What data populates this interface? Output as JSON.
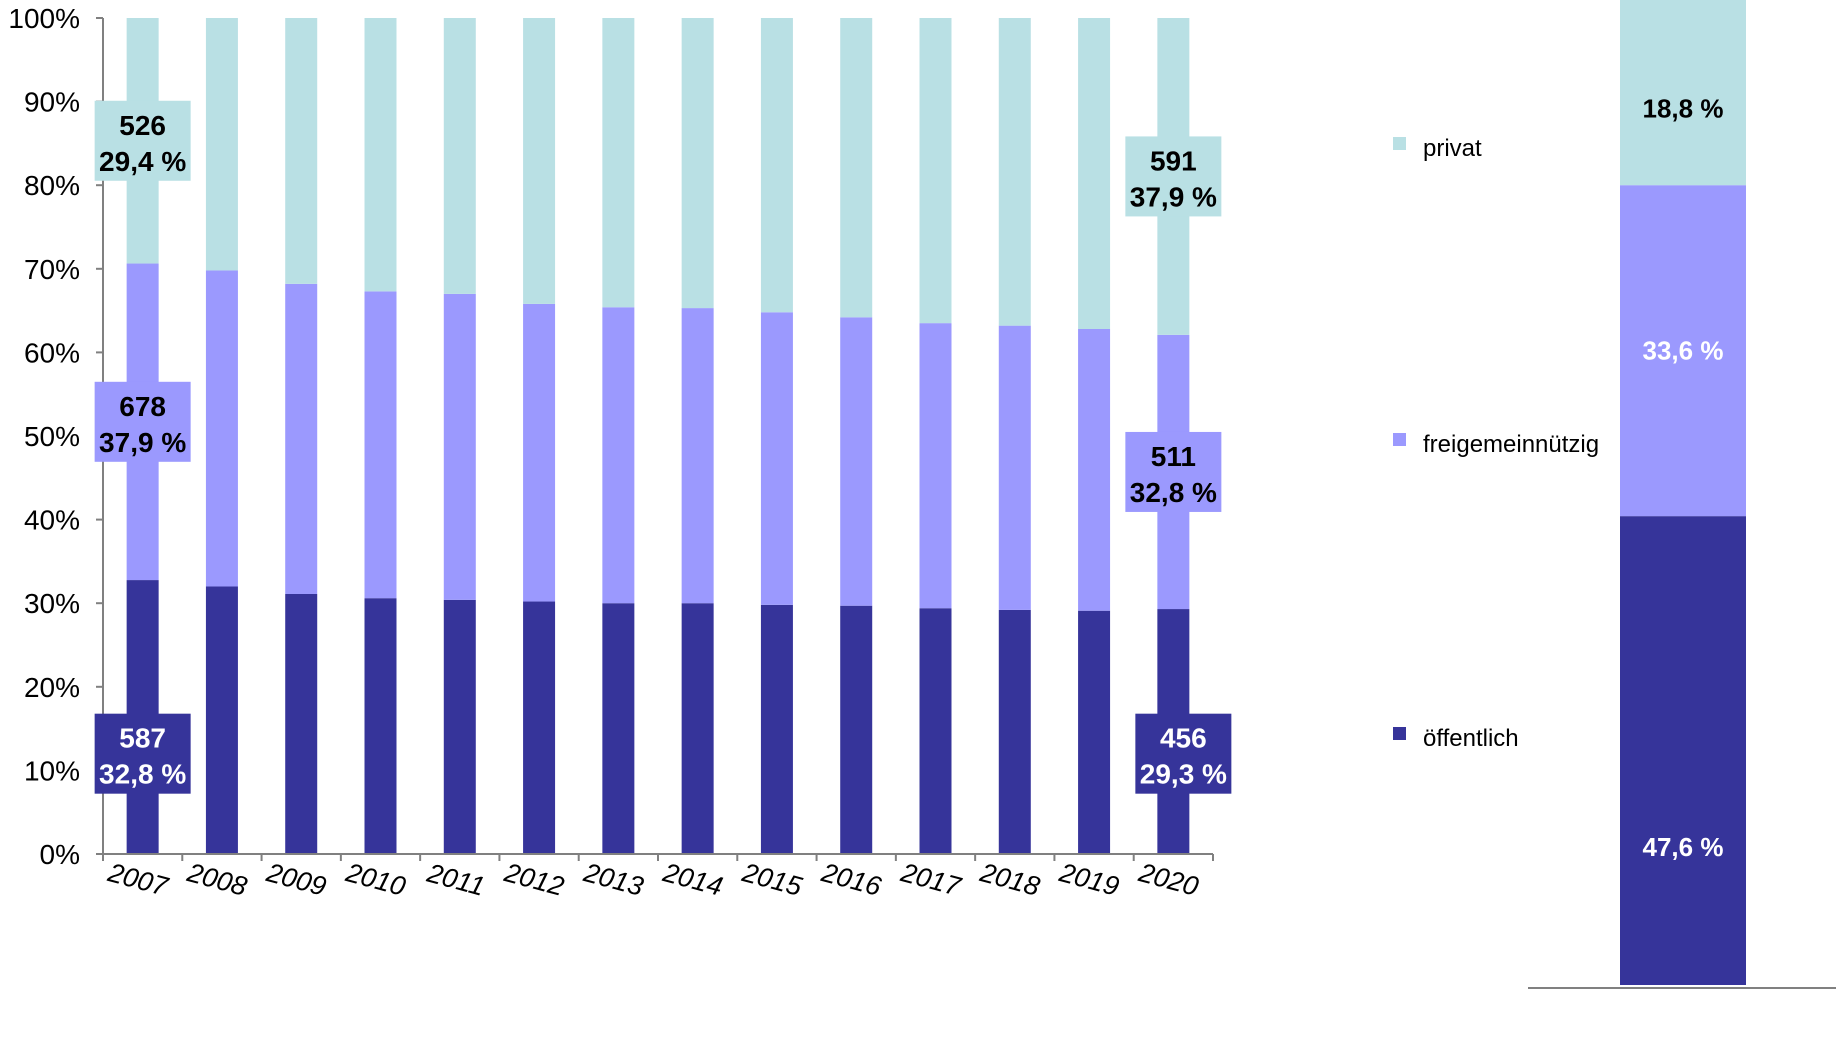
{
  "chart_data": [
    {
      "type": "bar",
      "stacked": true,
      "percent_stacked": true,
      "categories": [
        "2007",
        "2008",
        "2009",
        "2010",
        "2011",
        "2012",
        "2013",
        "2014",
        "2015",
        "2016",
        "2017",
        "2018",
        "2019",
        "2020"
      ],
      "series": [
        {
          "name": "öffentlich",
          "color": "#36349a",
          "values": [
            32.8,
            32.0,
            31.1,
            30.6,
            30.4,
            30.2,
            30.0,
            30.0,
            29.8,
            29.7,
            29.4,
            29.2,
            29.1,
            29.3
          ]
        },
        {
          "name": "freigemeinnützig",
          "color": "#9b99fe",
          "values": [
            37.9,
            37.8,
            37.1,
            36.7,
            36.6,
            35.6,
            35.4,
            35.3,
            35.0,
            34.5,
            34.1,
            34.0,
            33.7,
            32.8
          ]
        },
        {
          "name": "privat",
          "color": "#b9e0e4",
          "values": [
            29.4,
            30.2,
            31.8,
            32.7,
            33.0,
            34.2,
            34.6,
            34.7,
            35.2,
            35.8,
            36.5,
            36.8,
            37.2,
            37.9
          ]
        }
      ],
      "ylim": [
        0,
        100
      ],
      "yticks": [
        "0%",
        "10%",
        "20%",
        "30%",
        "40%",
        "50%",
        "60%",
        "70%",
        "80%",
        "90%",
        "100%"
      ],
      "legend_position": "right",
      "grid": false,
      "annotations": [
        {
          "category": "2007",
          "series": "privat",
          "count": "526",
          "percent": "29,4 %"
        },
        {
          "category": "2007",
          "series": "freigemeinnützig",
          "count": "678",
          "percent": "37,9 %"
        },
        {
          "category": "2007",
          "series": "öffentlich",
          "count": "587",
          "percent": "32,8 %"
        },
        {
          "category": "2020",
          "series": "privat",
          "count": "591",
          "percent": "37,9 %"
        },
        {
          "category": "2020",
          "series": "freigemeinnützig",
          "count": "511",
          "percent": "32,8 %"
        },
        {
          "category": "2020",
          "series": "öffentlich",
          "count": "456",
          "percent": "29,3 %"
        }
      ]
    },
    {
      "type": "bar",
      "stacked": true,
      "percent_stacked": true,
      "categories": [
        ""
      ],
      "series": [
        {
          "name": "öffentlich",
          "color": "#36349a",
          "values": [
            47.6
          ],
          "label": "47,6 %"
        },
        {
          "name": "freigemeinnützig",
          "color": "#9b99fe",
          "values": [
            33.6
          ],
          "label": "33,6 %"
        },
        {
          "name": "privat",
          "color": "#b9e0e4",
          "values": [
            18.8
          ],
          "label": "18,8 %"
        }
      ]
    }
  ]
}
